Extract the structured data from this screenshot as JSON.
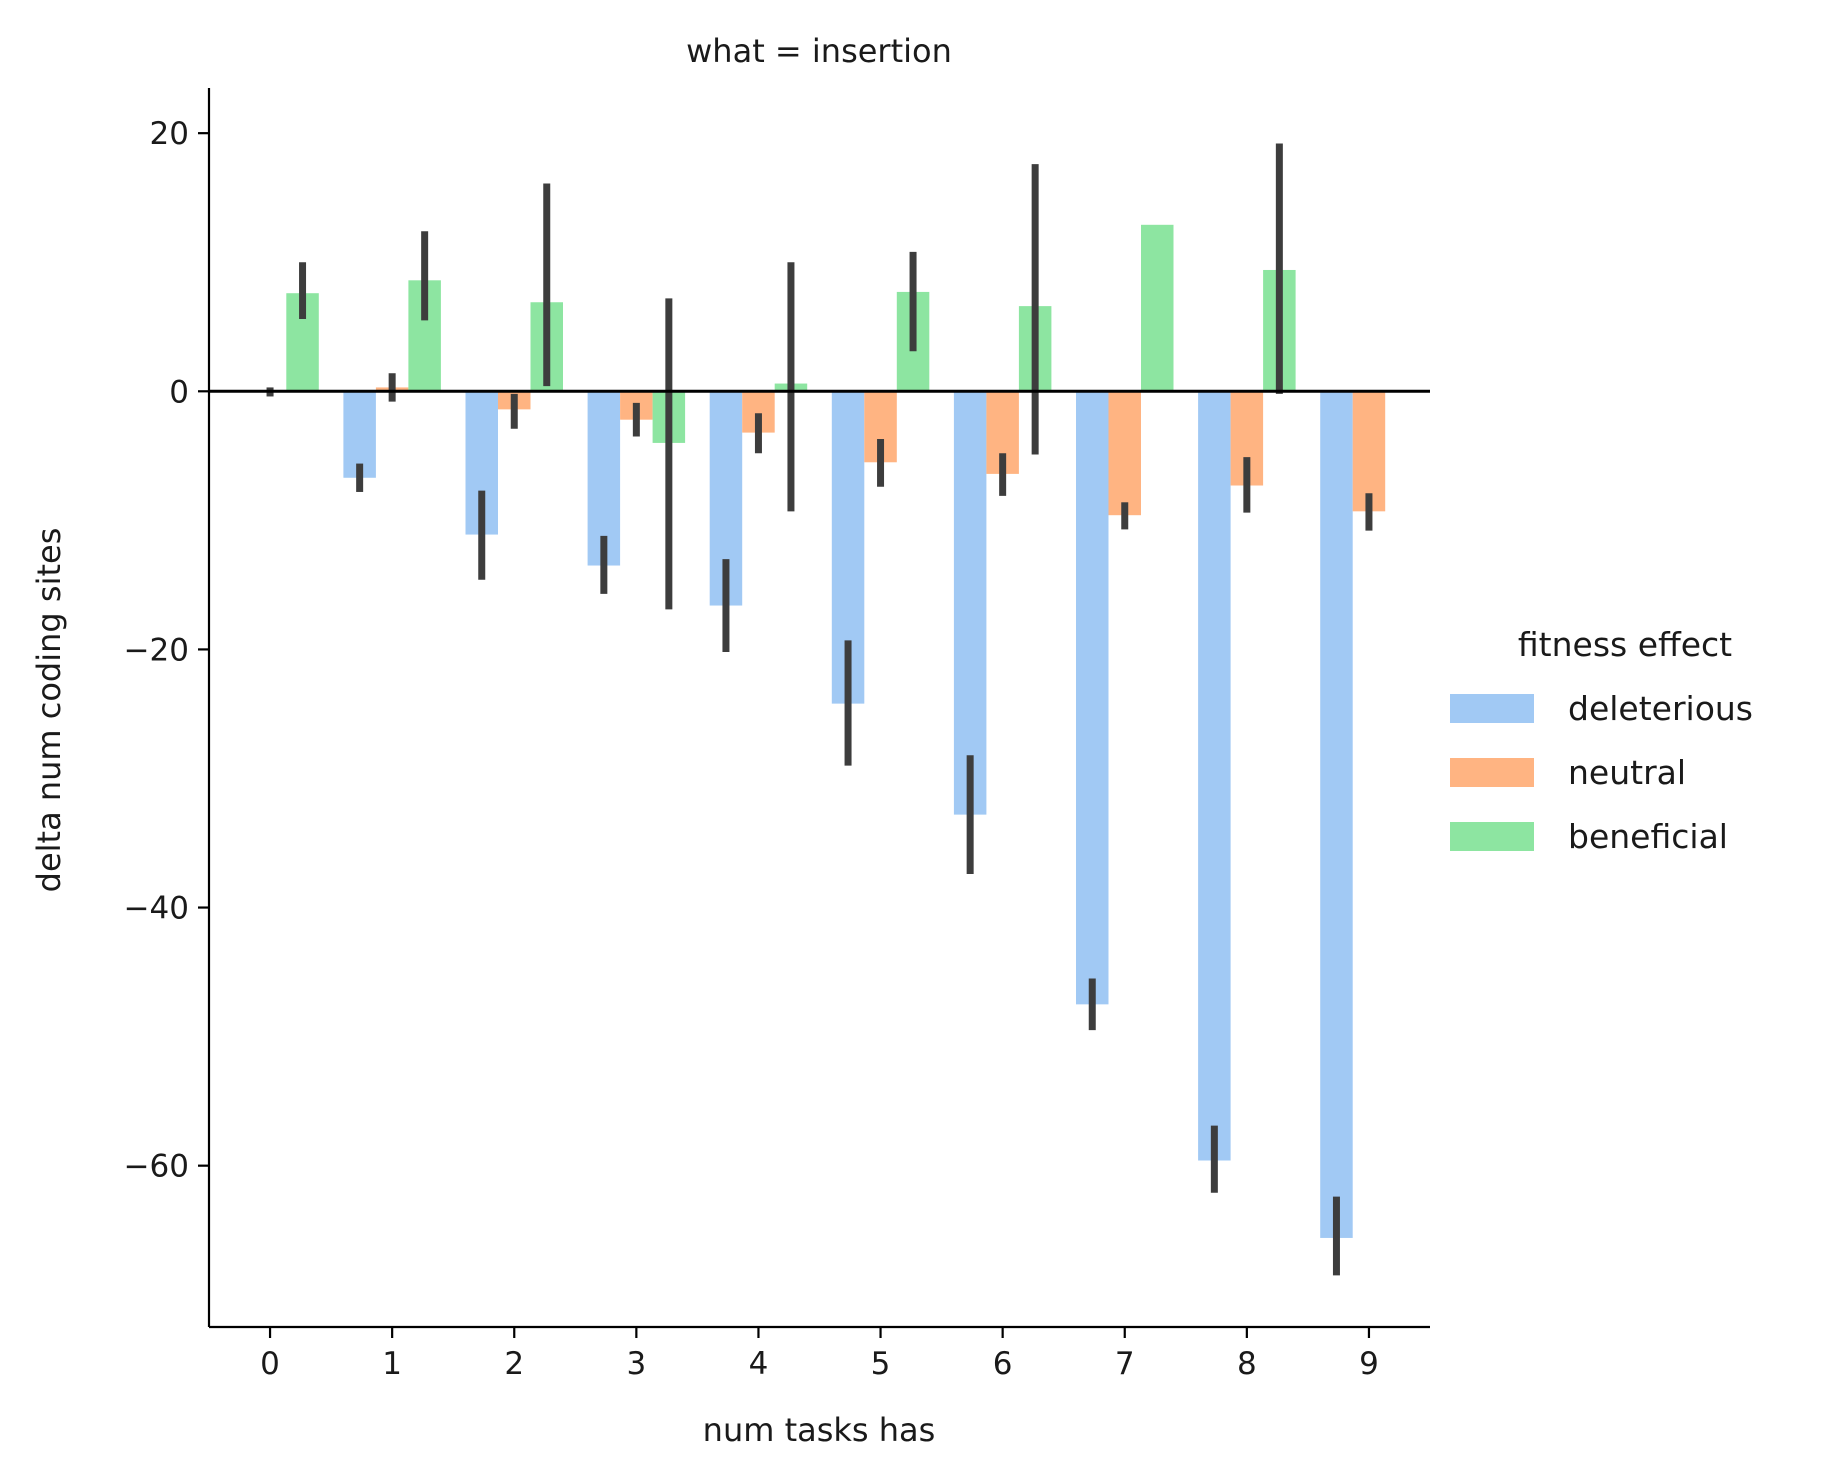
{
  "chart_data": {
    "type": "bar",
    "title": "what = insertion",
    "xlabel": "num tasks has",
    "ylabel": "delta num coding sites",
    "categories": [
      "0",
      "1",
      "2",
      "3",
      "4",
      "5",
      "6",
      "7",
      "8",
      "9"
    ],
    "ylim": [
      -72.5,
      23.5
    ],
    "yticks": [
      {
        "value": 20,
        "label": "20"
      },
      {
        "value": 0,
        "label": "0"
      },
      {
        "value": -20,
        "label": "−20"
      },
      {
        "value": -40,
        "label": "−40"
      },
      {
        "value": -60,
        "label": "−60"
      }
    ],
    "grid": false,
    "reference_line": 0,
    "legend": {
      "title": "fitness effect",
      "placement": "right"
    },
    "series": [
      {
        "name": "deleterious",
        "color": "#a1c9f4",
        "values": [
          null,
          -6.7,
          -11.1,
          -13.5,
          -16.6,
          -24.2,
          -32.8,
          -47.5,
          -59.6,
          -65.6
        ],
        "ci_low": [
          null,
          -7.8,
          -14.6,
          -15.7,
          -20.2,
          -29.0,
          -37.4,
          -49.5,
          -62.1,
          -68.5
        ],
        "ci_high": [
          null,
          -5.6,
          -7.7,
          -11.2,
          -13.0,
          -19.3,
          -28.2,
          -45.5,
          -56.9,
          -62.4
        ]
      },
      {
        "name": "neutral",
        "color": "#ffb482",
        "values": [
          0.0,
          0.3,
          -1.4,
          -2.2,
          -3.2,
          -5.5,
          -6.4,
          -9.6,
          -7.3,
          -9.3
        ],
        "ci_low": [
          -0.4,
          -0.8,
          -2.9,
          -3.5,
          -4.8,
          -7.4,
          -8.1,
          -10.7,
          -9.4,
          -10.8
        ],
        "ci_high": [
          0.3,
          1.4,
          -0.2,
          -0.9,
          -1.7,
          -3.7,
          -4.8,
          -8.6,
          -5.1,
          -7.9
        ]
      },
      {
        "name": "beneficial",
        "color": "#8de5a1",
        "values": [
          7.6,
          8.6,
          6.9,
          -4.0,
          0.6,
          7.7,
          6.6,
          12.9,
          9.4,
          null
        ],
        "ci_low": [
          5.6,
          5.5,
          0.4,
          -16.9,
          -9.3,
          3.1,
          -4.9,
          12.9,
          -0.2,
          null
        ],
        "ci_high": [
          10.0,
          12.4,
          16.1,
          7.2,
          10.0,
          10.8,
          17.6,
          12.9,
          19.2,
          null
        ]
      }
    ]
  }
}
